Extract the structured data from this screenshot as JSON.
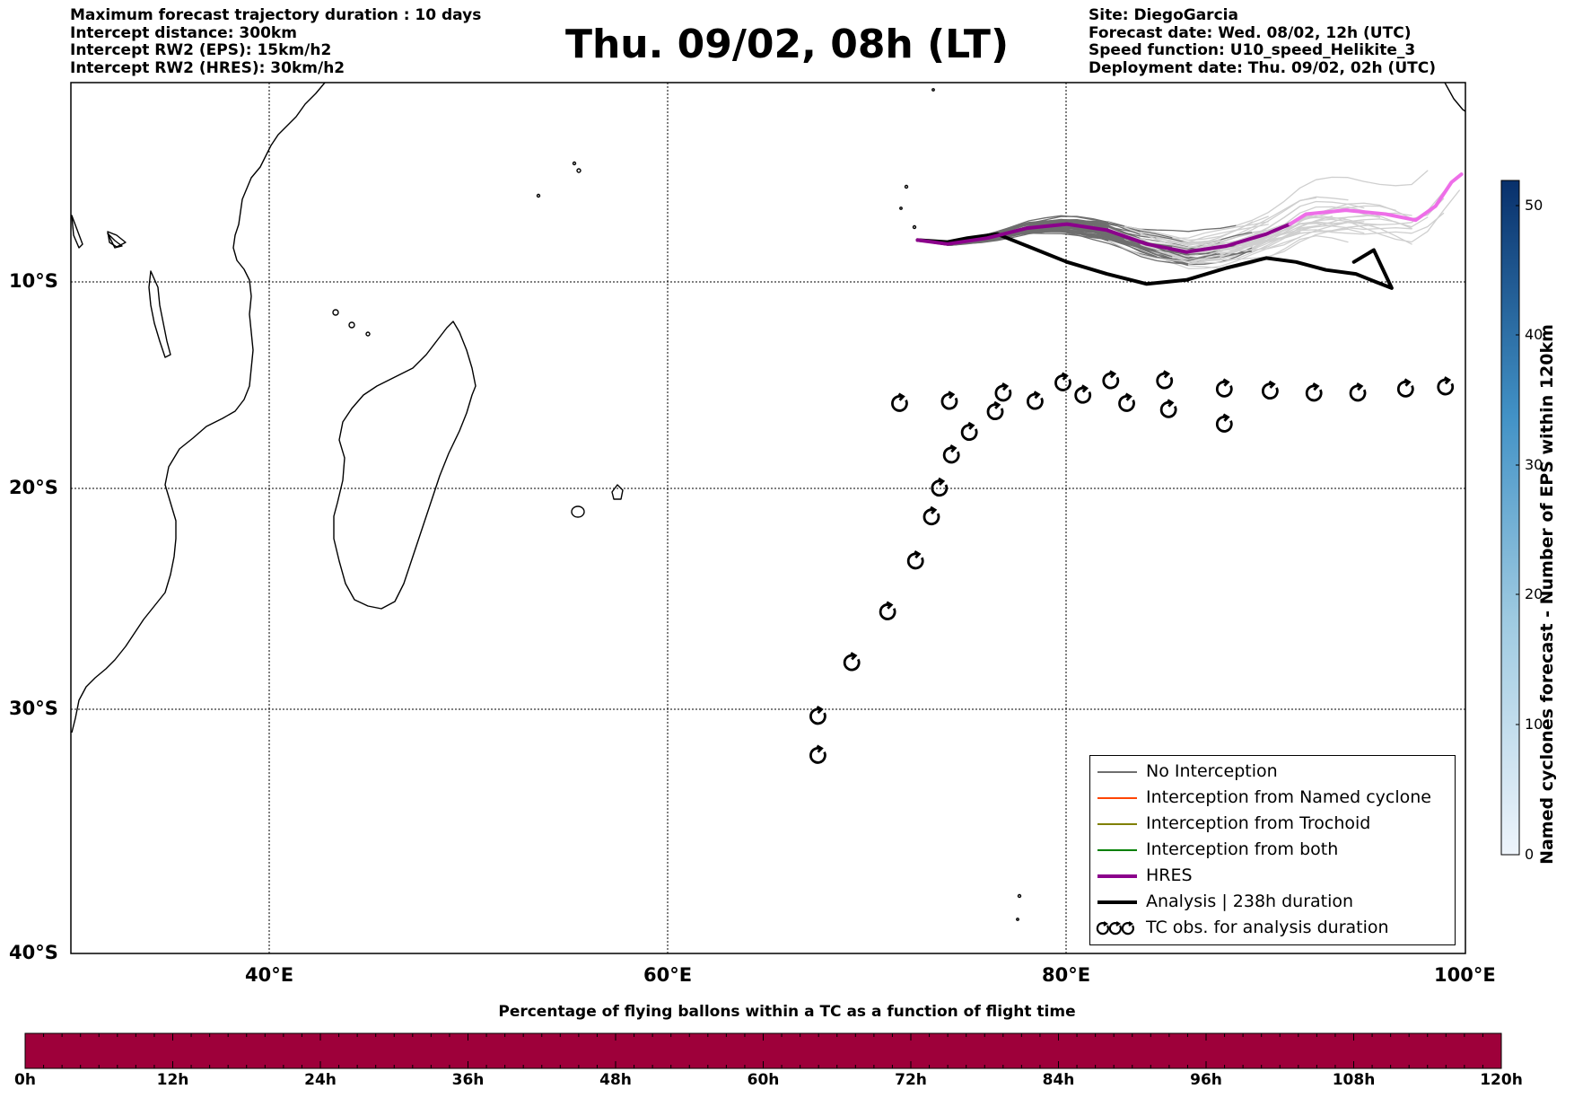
{
  "header": {
    "left_lines": [
      "Maximum forecast trajectory duration : 10 days",
      "Intercept distance: 300km",
      "Intercept RW2 (EPS):  15km/h2",
      "Intercept RW2 (HRES): 30km/h2"
    ],
    "title": "Thu. 09/02, 08h (LT)",
    "right_lines": [
      "Site: DiegoGarcia",
      "Forecast date: Wed. 08/02, 12h (UTC)",
      "Speed function: U10_speed_Helikite_3",
      "Deployment date: Thu. 09/02, 02h (UTC)"
    ]
  },
  "map": {
    "lon_range": [
      30,
      100
    ],
    "lat_range": [
      -40,
      0
    ],
    "lon_labels": [
      "40°E",
      "60°E",
      "80°E",
      "100°E"
    ],
    "lat_labels": [
      "10°S",
      "20°S",
      "30°S",
      "40°S"
    ],
    "gridlines": true,
    "colors": {
      "no_interception": "#6e6e6e",
      "no_interception_late": "#cfcfcf",
      "named_cyclone": "#ff4500",
      "trochoid": "#808000",
      "both": "#008000",
      "hres": "#8b008b",
      "hres_late": "#ee6ee8",
      "analysis": "#000000"
    },
    "hres_track": [
      [
        72.5,
        -7.9
      ],
      [
        74,
        -8.1
      ],
      [
        76,
        -7.8
      ],
      [
        78,
        -7.3
      ],
      [
        80,
        -7.1
      ],
      [
        82,
        -7.4
      ],
      [
        84,
        -8.1
      ],
      [
        86,
        -8.5
      ],
      [
        88,
        -8.2
      ],
      [
        90,
        -7.6
      ],
      [
        91.2,
        -7.1
      ],
      [
        92,
        -6.6
      ],
      [
        94,
        -6.4
      ],
      [
        96,
        -6.6
      ],
      [
        97.5,
        -6.9
      ],
      [
        98.5,
        -6.2
      ],
      [
        99.3,
        -5.0
      ],
      [
        99.8,
        -4.6
      ]
    ],
    "analysis_track": [
      [
        72.5,
        -7.9
      ],
      [
        74,
        -8.0
      ],
      [
        75,
        -7.8
      ],
      [
        76.5,
        -7.6
      ],
      [
        78,
        -8.2
      ],
      [
        80,
        -9.0
      ],
      [
        82,
        -9.6
      ],
      [
        84,
        -10.1
      ],
      [
        86,
        -9.9
      ],
      [
        88,
        -9.3
      ],
      [
        90,
        -8.8
      ],
      [
        91.5,
        -9.0
      ],
      [
        93,
        -9.4
      ],
      [
        94.5,
        -9.6
      ],
      [
        95.5,
        -10.0
      ],
      [
        96.3,
        -10.3
      ],
      [
        95.4,
        -8.4
      ],
      [
        94.4,
        -9.0
      ]
    ],
    "tc_obs": [
      [
        67.5,
        -31.9
      ],
      [
        67.5,
        -30.3
      ],
      [
        69.2,
        -27.9
      ],
      [
        71.0,
        -25.6
      ],
      [
        72.4,
        -23.3
      ],
      [
        73.2,
        -21.3
      ],
      [
        73.6,
        -20.0
      ],
      [
        74.2,
        -18.4
      ],
      [
        75.1,
        -17.3
      ],
      [
        76.4,
        -16.3
      ],
      [
        71.6,
        -15.9
      ],
      [
        74.1,
        -15.8
      ],
      [
        76.8,
        -15.4
      ],
      [
        78.4,
        -15.8
      ],
      [
        79.8,
        -14.9
      ],
      [
        80.8,
        -15.5
      ],
      [
        82.2,
        -14.8
      ],
      [
        83.0,
        -15.9
      ],
      [
        84.9,
        -14.8
      ],
      [
        85.1,
        -16.2
      ],
      [
        87.9,
        -15.2
      ],
      [
        87.9,
        -16.9
      ],
      [
        90.2,
        -15.3
      ],
      [
        92.4,
        -15.4
      ],
      [
        94.6,
        -15.4
      ],
      [
        97.0,
        -15.2
      ],
      [
        99.0,
        -15.1
      ]
    ]
  },
  "legend": {
    "items": [
      {
        "label": "No Interception",
        "color": "#6e6e6e",
        "kind": "thin"
      },
      {
        "label": "Interception from Named cyclone",
        "color": "#ff4500",
        "kind": "thin"
      },
      {
        "label": "Interception from Trochoid",
        "color": "#808000",
        "kind": "thin"
      },
      {
        "label": "Interception from both",
        "color": "#008000",
        "kind": "thin"
      },
      {
        "label": "HRES",
        "color": "#8b008b",
        "kind": "thick"
      },
      {
        "label": "Analysis | 238h duration",
        "color": "#000000",
        "kind": "thick"
      },
      {
        "label": "TC obs. for analysis duration",
        "color": "#000000",
        "kind": "symbol"
      }
    ]
  },
  "colorbar": {
    "title": "Named cyclones forecast - Number of EPS within 120km",
    "ticks": [
      "0",
      "10",
      "20",
      "30",
      "40",
      "50"
    ],
    "range": [
      0,
      52
    ],
    "color_low": "#e6eff9",
    "color_high": "#08306b"
  },
  "percentage_bar": {
    "title": "Percentage of flying ballons within a TC as a function of flight time",
    "ticks": [
      "0h",
      "12h",
      "24h",
      "36h",
      "48h",
      "60h",
      "72h",
      "84h",
      "96h",
      "108h",
      "120h"
    ],
    "fill_color": "#9e003a"
  }
}
